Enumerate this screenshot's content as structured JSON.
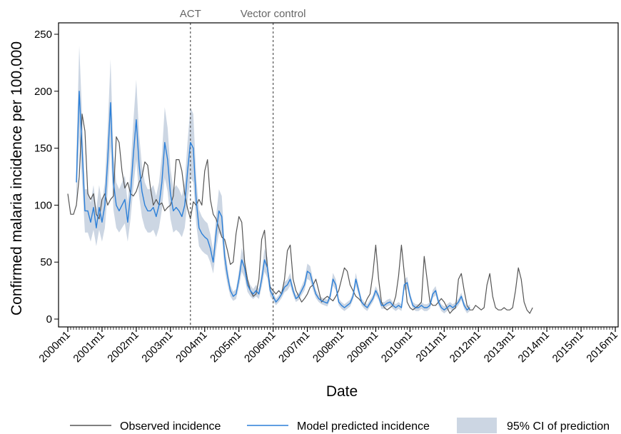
{
  "chart_data": {
    "type": "line",
    "xlabel": "Date",
    "ylabel": "Confirmed malaria incidence per 100,000",
    "ylim": [
      0,
      250
    ],
    "yticks": [
      0,
      50,
      100,
      150,
      200,
      250
    ],
    "xlim": [
      "2000m1",
      "2016m1"
    ],
    "xticks": [
      "2000m1",
      "2001m1",
      "2002m1",
      "2003m1",
      "2004m1",
      "2005m1",
      "2006m1",
      "2007m1",
      "2008m1",
      "2009m1",
      "2010m1",
      "2011m1",
      "2012m1",
      "2013m1",
      "2014m1",
      "2015m1",
      "2016m1"
    ],
    "grid": false,
    "legend": {
      "placement": "bottom",
      "entries": [
        "Observed incidence",
        "Model predicted incidence",
        "95% CI of prediction"
      ]
    },
    "annotations": [
      {
        "label": "ACT",
        "x": "2003m8"
      },
      {
        "label": "Vector control",
        "x": "2006m1"
      }
    ],
    "colors": {
      "observed": "#555555",
      "predicted": "#2b7fd8",
      "ci": "#ccd6e3",
      "vline": "#555555",
      "annotation": "#666666"
    },
    "series": [
      {
        "name": "Observed incidence",
        "start": "2000m1",
        "values": [
          110,
          92,
          92,
          100,
          125,
          180,
          165,
          110,
          105,
          110,
          92,
          88,
          105,
          110,
          100,
          105,
          108,
          160,
          155,
          130,
          115,
          120,
          110,
          108,
          112,
          120,
          125,
          138,
          135,
          115,
          100,
          105,
          100,
          102,
          95,
          98,
          100,
          108,
          140,
          140,
          130,
          110,
          97,
          88,
          103,
          100,
          105,
          100,
          130,
          140,
          105,
          92,
          88,
          80,
          72,
          70,
          60,
          48,
          50,
          75,
          90,
          85,
          50,
          35,
          25,
          20,
          22,
          35,
          70,
          78,
          45,
          28,
          25,
          22,
          25,
          22,
          35,
          60,
          65,
          35,
          25,
          20,
          15,
          18,
          22,
          28,
          30,
          35,
          25,
          15,
          18,
          20,
          18,
          16,
          20,
          25,
          35,
          45,
          42,
          30,
          25,
          20,
          18,
          15,
          12,
          18,
          22,
          40,
          65,
          35,
          15,
          10,
          8,
          10,
          12,
          20,
          38,
          65,
          40,
          15,
          10,
          8,
          10,
          12,
          15,
          55,
          35,
          15,
          12,
          12,
          15,
          18,
          15,
          10,
          5,
          8,
          10,
          35,
          40,
          25,
          12,
          8,
          8,
          12,
          10,
          8,
          10,
          30,
          40,
          20,
          10,
          8,
          8,
          10,
          8,
          8,
          10,
          25,
          45,
          35,
          15,
          8,
          5,
          10
        ]
      },
      {
        "name": "Model predicted incidence",
        "start": "2000m4",
        "values": [
          120,
          200,
          150,
          95,
          95,
          85,
          98,
          80,
          98,
          85,
          100,
          140,
          190,
          120,
          100,
          95,
          100,
          105,
          85,
          110,
          145,
          175,
          135,
          112,
          100,
          95,
          95,
          98,
          90,
          100,
          120,
          155,
          140,
          110,
          95,
          98,
          95,
          90,
          100,
          130,
          155,
          150,
          105,
          80,
          75,
          72,
          70,
          62,
          50,
          75,
          95,
          90,
          55,
          38,
          25,
          20,
          22,
          35,
          52,
          45,
          30,
          25,
          22,
          25,
          22,
          35,
          52,
          45,
          25,
          20,
          15,
          18,
          22,
          28,
          30,
          35,
          25,
          18,
          20,
          25,
          30,
          42,
          40,
          30,
          22,
          18,
          16,
          15,
          14,
          20,
          35,
          30,
          15,
          12,
          10,
          12,
          14,
          20,
          35,
          25,
          15,
          12,
          10,
          14,
          18,
          25,
          20,
          12,
          12,
          14,
          15,
          12,
          10,
          12,
          10,
          30,
          32,
          20,
          12,
          10,
          10,
          12,
          10,
          10,
          12,
          22,
          25,
          15,
          10,
          8,
          10,
          12,
          10,
          12,
          15,
          20,
          12,
          8,
          10
        ]
      }
    ]
  }
}
